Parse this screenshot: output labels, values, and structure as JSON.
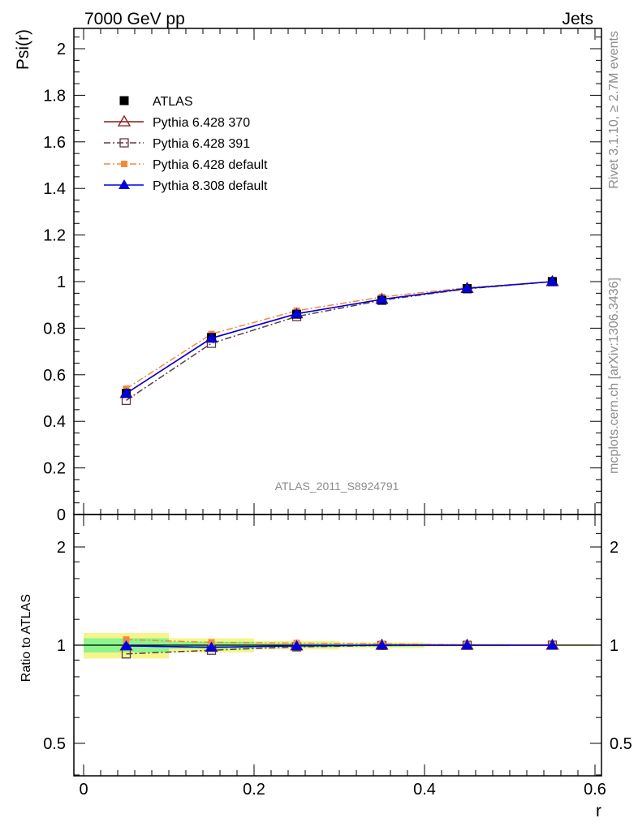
{
  "header": {
    "left": "7000 GeV pp",
    "right": "Jets"
  },
  "side_labels": {
    "rivet": "Rivet 3.1.10, ≥ 2.7M events",
    "mcplots": "mcplots.cern.ch [arXiv:1306.3436]"
  },
  "watermark": "ATLAS_2011_S8924791",
  "colors": {
    "atlas": "#000000",
    "p370": "#8b1a1a",
    "p391": "#5a3a4a",
    "p6def": "#f28a3c",
    "p8def": "#0000e0",
    "band_inner": "#8cf58c",
    "band_outer": "#f5f58c"
  },
  "chart_data": [
    {
      "type": "line",
      "panel": "main",
      "ylabel": "Psi(r)",
      "xlim": [
        -0.01,
        0.6
      ],
      "ylim": [
        0,
        2.1
      ],
      "yticks": [
        {
          "v": 0.2,
          "label": "0.2"
        },
        {
          "v": 0.4,
          "label": "0.4"
        },
        {
          "v": 0.6,
          "label": "0.6"
        },
        {
          "v": 0.8,
          "label": "0.8"
        },
        {
          "v": 1.0,
          "label": "1"
        },
        {
          "v": 1.2,
          "label": "1.2"
        },
        {
          "v": 1.4,
          "label": "1.4"
        },
        {
          "v": 1.6,
          "label": "1.6"
        },
        {
          "v": 1.8,
          "label": "1.8"
        },
        {
          "v": 2.0,
          "label": "2"
        }
      ],
      "x": [
        0.05,
        0.15,
        0.25,
        0.35,
        0.45,
        0.55
      ],
      "series": [
        {
          "key": "atlas",
          "name": "ATLAS",
          "values": [
            0.52,
            0.76,
            0.86,
            0.92,
            0.97,
            1.0
          ]
        },
        {
          "key": "p370",
          "name": "Pythia 6.428 370",
          "values": [
            0.52,
            0.757,
            0.862,
            0.924,
            0.971,
            1.0
          ]
        },
        {
          "key": "p391",
          "name": "Pythia 6.428 391",
          "values": [
            0.49,
            0.735,
            0.85,
            0.92,
            0.969,
            1.0
          ]
        },
        {
          "key": "p6def",
          "name": "Pythia 6.428 default",
          "values": [
            0.54,
            0.775,
            0.875,
            0.934,
            0.974,
            1.0
          ]
        },
        {
          "key": "p8def",
          "name": "Pythia 8.308 default",
          "values": [
            0.52,
            0.757,
            0.862,
            0.924,
            0.971,
            1.0
          ]
        }
      ],
      "legend": "top-left"
    },
    {
      "type": "line",
      "panel": "ratio",
      "ylabel": "Ratio to ATLAS",
      "xlabel": "r",
      "log_y": true,
      "xlim": [
        -0.01,
        0.6
      ],
      "ylim": [
        0.4,
        2.3
      ],
      "yticks": [
        {
          "v": 0.5,
          "label": "0.5"
        },
        {
          "v": 1,
          "label": "1"
        },
        {
          "v": 2,
          "label": "2"
        }
      ],
      "xticks": [
        {
          "v": 0,
          "label": "0"
        },
        {
          "v": 0.2,
          "label": "0.2"
        },
        {
          "v": 0.4,
          "label": "0.4"
        },
        {
          "v": 0.6,
          "label": "0.6"
        }
      ],
      "x": [
        0.05,
        0.15,
        0.25,
        0.35,
        0.45,
        0.55
      ],
      "bins": [
        [
          0.0,
          0.1
        ],
        [
          0.1,
          0.2
        ],
        [
          0.2,
          0.3
        ],
        [
          0.3,
          0.4
        ],
        [
          0.4,
          0.5
        ],
        [
          0.5,
          0.6
        ]
      ],
      "band_inner": [
        0.05,
        0.025,
        0.015,
        0.01,
        0.006,
        0.003
      ],
      "band_outer": [
        0.09,
        0.05,
        0.03,
        0.02,
        0.01,
        0.005
      ],
      "series": [
        {
          "key": "p370",
          "name": "Pythia 6.428 370",
          "values": [
            0.995,
            0.985,
            0.995,
            1.0,
            1.0,
            1.0
          ]
        },
        {
          "key": "p391",
          "name": "Pythia 6.428 391",
          "values": [
            0.94,
            0.965,
            0.988,
            0.998,
            0.999,
            1.0
          ]
        },
        {
          "key": "p6def",
          "name": "Pythia 6.428 default",
          "values": [
            1.04,
            1.02,
            1.015,
            1.01,
            1.003,
            1.0
          ]
        },
        {
          "key": "p8def",
          "name": "Pythia 8.308 default",
          "values": [
            0.995,
            0.985,
            0.995,
            1.0,
            1.0,
            1.0
          ]
        }
      ]
    }
  ]
}
